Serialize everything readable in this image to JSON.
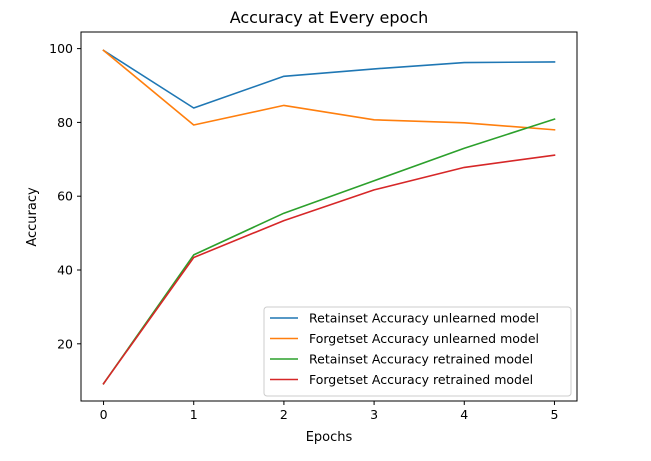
{
  "chart_data": {
    "type": "line",
    "title": "Accuracy at Every epoch",
    "xlabel": "Epochs",
    "ylabel": "Accuracy",
    "x": [
      0,
      1,
      2,
      3,
      4,
      5
    ],
    "xlim": [
      -0.25,
      5.25
    ],
    "ylim": [
      4.5,
      104.5
    ],
    "xticks": [
      0,
      1,
      2,
      3,
      4,
      5
    ],
    "yticks": [
      20,
      40,
      60,
      80,
      100
    ],
    "grid": false,
    "legend_position": "lower-right",
    "series": [
      {
        "name": "Retainset Accuracy unlearned model",
        "color": "#1f77b4",
        "values": [
          99.5,
          83.9,
          92.5,
          94.5,
          96.2,
          96.4
        ]
      },
      {
        "name": "Forgetset Accuracy unlearned model",
        "color": "#ff7f0e",
        "values": [
          99.5,
          79.3,
          84.6,
          80.7,
          79.9,
          78.0
        ]
      },
      {
        "name": "Retainset Accuracy retrained model",
        "color": "#2ca02c",
        "values": [
          9.2,
          44.1,
          55.4,
          64.2,
          73.0,
          80.9
        ]
      },
      {
        "name": "Forgetset Accuracy retrained model",
        "color": "#d62728",
        "values": [
          9.2,
          43.4,
          53.4,
          61.7,
          67.8,
          71.1
        ]
      }
    ]
  }
}
